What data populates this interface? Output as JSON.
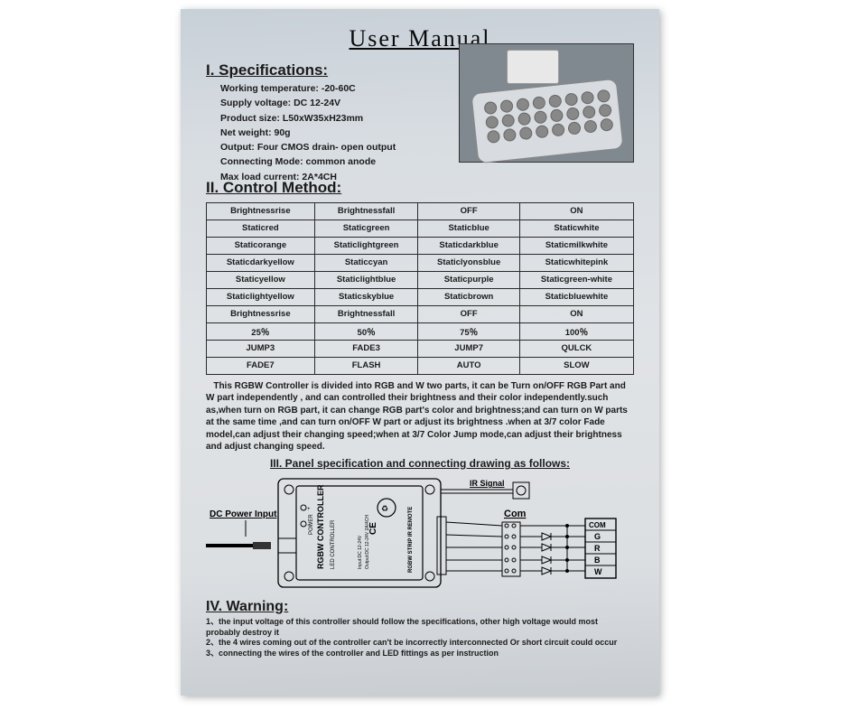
{
  "title": "User  Manual",
  "sections": {
    "spec_heading": "I. Specifications:",
    "control_heading": "II. Control Method:",
    "panel_heading": "III. Panel specification and connecting drawing as follows:",
    "warn_heading": "IV. Warning:"
  },
  "specs": {
    "l1": "Working temperature: -20-60C",
    "l2": "Supply voltage: DC 12-24V",
    "l3": "Product size: L50xW35xH23mm",
    "l4": "Net weight: 90g",
    "l5": "Output: Four CMOS drain- open output",
    "l6": "Connecting Mode: common anode",
    "l7": "Max load current: 2A*4CH"
  },
  "table": {
    "rows": [
      [
        "Brightnessrise",
        "Brightnessfall",
        "OFF",
        "ON"
      ],
      [
        "Staticred",
        "Staticgreen",
        "Staticblue",
        "Staticwhite"
      ],
      [
        "Staticorange",
        "Staticlightgreen",
        "Staticdarkblue",
        "Staticmilkwhite"
      ],
      [
        "Staticdarkyellow",
        "Staticcyan",
        "Staticlyonsblue",
        "Staticwhitepink"
      ],
      [
        "Staticyellow",
        "Staticlightblue",
        "Staticpurple",
        "Staticgreen-white"
      ],
      [
        "Staticlightyellow",
        "Staticskyblue",
        "Staticbrown",
        "Staticbluewhite"
      ],
      [
        "Brightnessrise",
        "Brightnessfall",
        "OFF",
        "ON"
      ],
      [
        "25％",
        "50％",
        "75％",
        "100％"
      ],
      [
        "JUMP3",
        "FADE3",
        "JUMP7",
        "QULCK"
      ],
      [
        "FADE7",
        "FLASH",
        "AUTO",
        "SLOW"
      ]
    ]
  },
  "description": "This RGBW Controller is divided into RGB and W two parts, it can be Turn on/OFF RGB Part and W part independently , and can controlled their brightness and their color independently.such as,when turn on RGB part, it can change RGB part's color and brightness;and can turn on W parts at the same time ,and can turn on/OFF W part or adjust its brightness .when at 3/7 color Fade model,can adjust their changing speed;when at 3/7 Color Jump mode,can adjust their brightness and adjust changing speed.",
  "diagram_labels": {
    "dcin": "DC Power Input",
    "controller": "RGBW CONTROLLER",
    "sub1": "LED CONTROLLER",
    "sub2": "Input:DC 12-24V",
    "sub3": "Output:DC 12-24V 2A/4CH",
    "sub4": "RGBW STRIP  IR REMOTE",
    "ir": "IR Signal",
    "com": "Com",
    "pins": [
      "COM",
      "G",
      "R",
      "B",
      "W"
    ]
  },
  "warnings": {
    "w1": "the input voltage of this controller should follow the specifications, other high voltage would most probably destroy it",
    "w2": "the 4 wires coming out of the controller can't be incorrectly interconnected Or short circuit could occur",
    "w3": "connecting the wires of the controller and LED fittings as per instruction"
  },
  "colors": {
    "page_bg_top": "#c8d0d8",
    "page_bg_mid": "#e0e3e6",
    "text": "#1a1a1a",
    "border": "#2a2a2a",
    "photo_bg": "#808890"
  }
}
